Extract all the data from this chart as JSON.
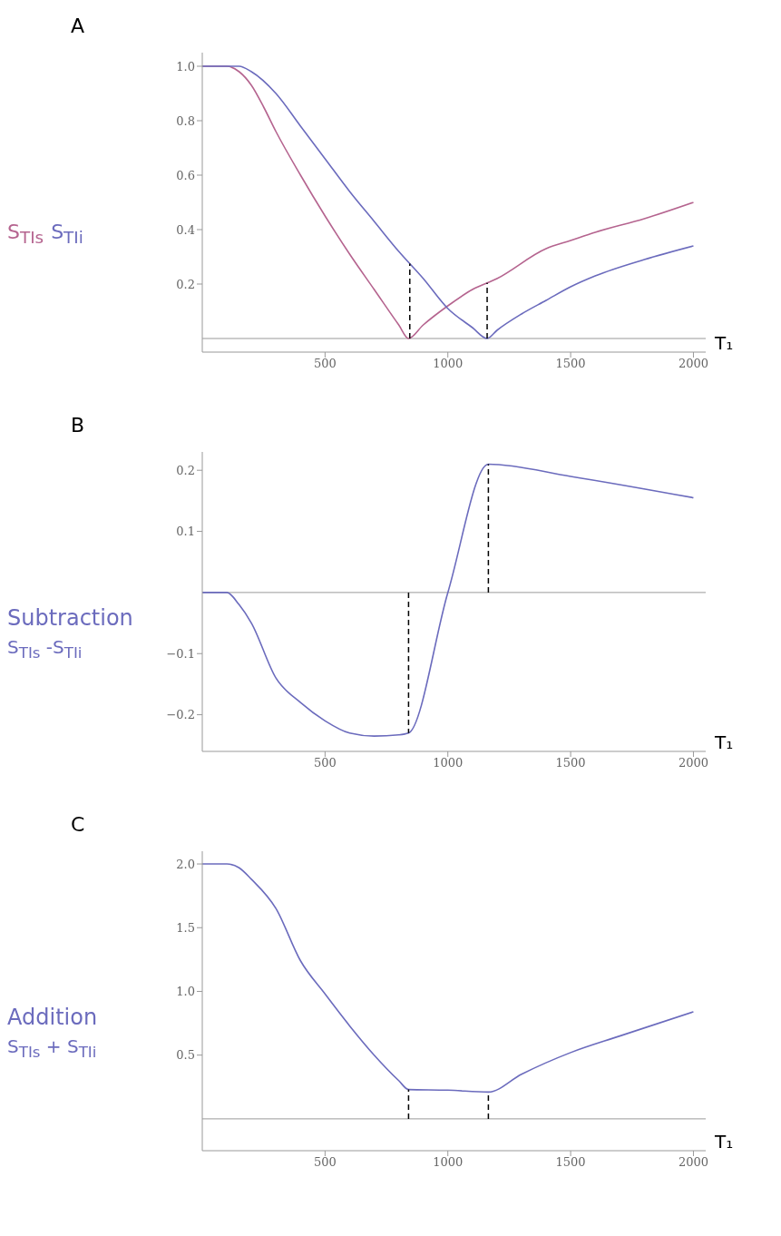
{
  "chart_data": [
    {
      "type": "line",
      "title": "A",
      "xlabel": "T₁",
      "legend": "left",
      "marker": "none",
      "line_style": "solid",
      "xlim": [
        0,
        2050
      ],
      "xticks": [
        500,
        1000,
        1500,
        2000
      ],
      "ylim": [
        -0.05,
        1.05
      ],
      "yticks": [
        0.2,
        0.4,
        0.6,
        0.8,
        {
          "value": 1,
          "label": "1.0"
        }
      ],
      "ref_lines": [
        {
          "axis": "x",
          "value": 845,
          "line_style": "dashed",
          "color": "#000000"
        },
        {
          "axis": "x",
          "value": 1160,
          "line_style": "dashed",
          "color": "#000000"
        }
      ],
      "series": [
        {
          "name": "S$_{TIs}$",
          "color": "#b5648f",
          "x": [
            0,
            100,
            150,
            200,
            250,
            300,
            400,
            500,
            600,
            700,
            800,
            840,
            900,
            1000,
            1100,
            1200,
            1400,
            1500,
            1600,
            1800,
            2000
          ],
          "values": [
            1,
            1,
            0.98,
            0.93,
            0.85,
            0.76,
            0.6,
            0.45,
            0.31,
            0.18,
            0.05,
            0,
            0.05,
            0.12,
            0.18,
            0.22,
            0.33,
            0.36,
            0.39,
            0.44,
            0.5
          ]
        },
        {
          "name": "S$_{TIi}$",
          "color": "#6b6bbd",
          "x": [
            0,
            150,
            200,
            300,
            400,
            500,
            600,
            700,
            800,
            900,
            1000,
            1100,
            1160,
            1200,
            1300,
            1400,
            1500,
            1600,
            1800,
            2000
          ],
          "values": [
            1,
            1,
            0.98,
            0.9,
            0.78,
            0.66,
            0.54,
            0.43,
            0.32,
            0.22,
            0.11,
            0.04,
            0,
            0.03,
            0.09,
            0.14,
            0.19,
            0.23,
            0.29,
            0.34
          ]
        }
      ]
    },
    {
      "type": "line",
      "title": "B",
      "xlabel": "T₁",
      "ylabel": "Subtraction\nS$_{TIs}$ -S$_{TIi}$",
      "marker": "none",
      "line_style": "solid",
      "xlim": [
        0,
        2050
      ],
      "xticks": [
        500,
        1000,
        1500,
        2000
      ],
      "ylim": [
        -0.26,
        0.23
      ],
      "yticks": [
        {
          "value": -0.2,
          "label": "−0.2"
        },
        {
          "value": -0.1,
          "label": "−0.1"
        },
        0.1,
        0.2
      ],
      "ref_lines": [
        {
          "axis": "x",
          "value": 840,
          "line_style": "dashed",
          "color": "#000000"
        },
        {
          "axis": "x",
          "value": 1165,
          "line_style": "dashed",
          "color": "#000000"
        }
      ],
      "series": [
        {
          "color": "#6b6bbd",
          "x": [
            0,
            100,
            150,
            200,
            300,
            400,
            500,
            600,
            700,
            800,
            840,
            1000,
            1165,
            1500,
            2000
          ],
          "values": [
            0,
            0,
            -0.02,
            -0.05,
            -0.14,
            -0.18,
            -0.21,
            -0.23,
            -0.235,
            -0.233,
            -0.23,
            0,
            0.21,
            0.19,
            0.155
          ]
        }
      ]
    },
    {
      "type": "line",
      "title": "C",
      "xlabel": "T₁",
      "ylabel": "Addition\nS$_{TIs}$ + S$_{TIi}$",
      "marker": "none",
      "line_style": "solid",
      "xlim": [
        0,
        2050
      ],
      "xticks": [
        500,
        1000,
        1500,
        2000
      ],
      "ylim": [
        -0.25,
        2.1
      ],
      "yticks": [
        0.5,
        {
          "value": 1,
          "label": "1.0"
        },
        1.5,
        {
          "value": 2,
          "label": "2.0"
        }
      ],
      "ref_lines": [
        {
          "axis": "x",
          "value": 840,
          "line_style": "dashed",
          "color": "#000000"
        },
        {
          "axis": "x",
          "value": 1165,
          "line_style": "dashed",
          "color": "#000000"
        }
      ],
      "series": [
        {
          "color": "#6b6bbd",
          "x": [
            0,
            100,
            150,
            200,
            300,
            400,
            500,
            600,
            700,
            800,
            840,
            1000,
            1165,
            1300,
            1500,
            1700,
            2000
          ],
          "values": [
            2,
            2,
            1.97,
            1.88,
            1.65,
            1.24,
            0.98,
            0.73,
            0.5,
            0.3,
            0.23,
            0.225,
            0.21,
            0.35,
            0.52,
            0.65,
            0.84
          ]
        }
      ]
    }
  ]
}
